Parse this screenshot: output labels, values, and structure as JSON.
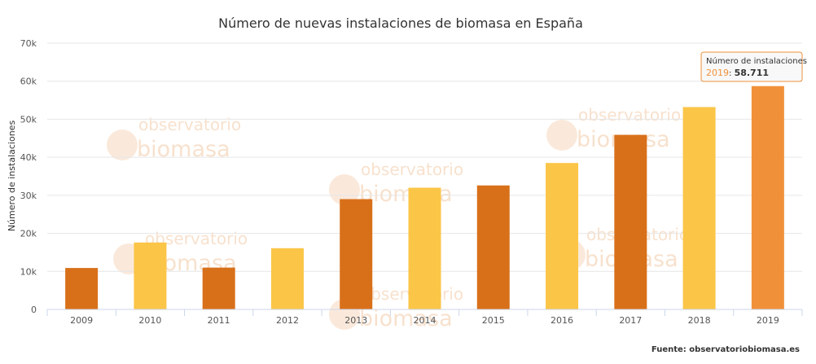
{
  "watermark": {
    "line1": "observatorio",
    "line2": "biomasa",
    "color": "#f2c9a6"
  },
  "chart_data": {
    "type": "bar",
    "title": "Número de nuevas instalaciones de biomasa en España",
    "xlabel": "",
    "ylabel": "Número de instalaciones",
    "categories": [
      "2009",
      "2010",
      "2011",
      "2012",
      "2013",
      "2014",
      "2015",
      "2016",
      "2017",
      "2018",
      "2019"
    ],
    "values": [
      10900,
      17600,
      11000,
      16100,
      29000,
      32000,
      32600,
      38500,
      45900,
      53200,
      58711
    ],
    "colors": [
      "#d8701a",
      "#fbc547",
      "#d8701a",
      "#fbc547",
      "#d8701a",
      "#fbc547",
      "#d8701a",
      "#fbc547",
      "#d8701a",
      "#fbc547",
      "#f0913a"
    ],
    "ylim": [
      0,
      70000
    ],
    "yticks": [
      0,
      10000,
      20000,
      30000,
      40000,
      50000,
      60000,
      70000
    ],
    "ytick_labels": [
      "0",
      "10k",
      "20k",
      "30k",
      "40k",
      "50k",
      "60k",
      "70k"
    ],
    "grid": true,
    "source": "Fuente: observatoriobiomasa.es",
    "tooltip": {
      "series_name": "Número de instalaciones",
      "category": "2019",
      "value_label": "58.711",
      "accent_color": "#f0913a"
    }
  }
}
